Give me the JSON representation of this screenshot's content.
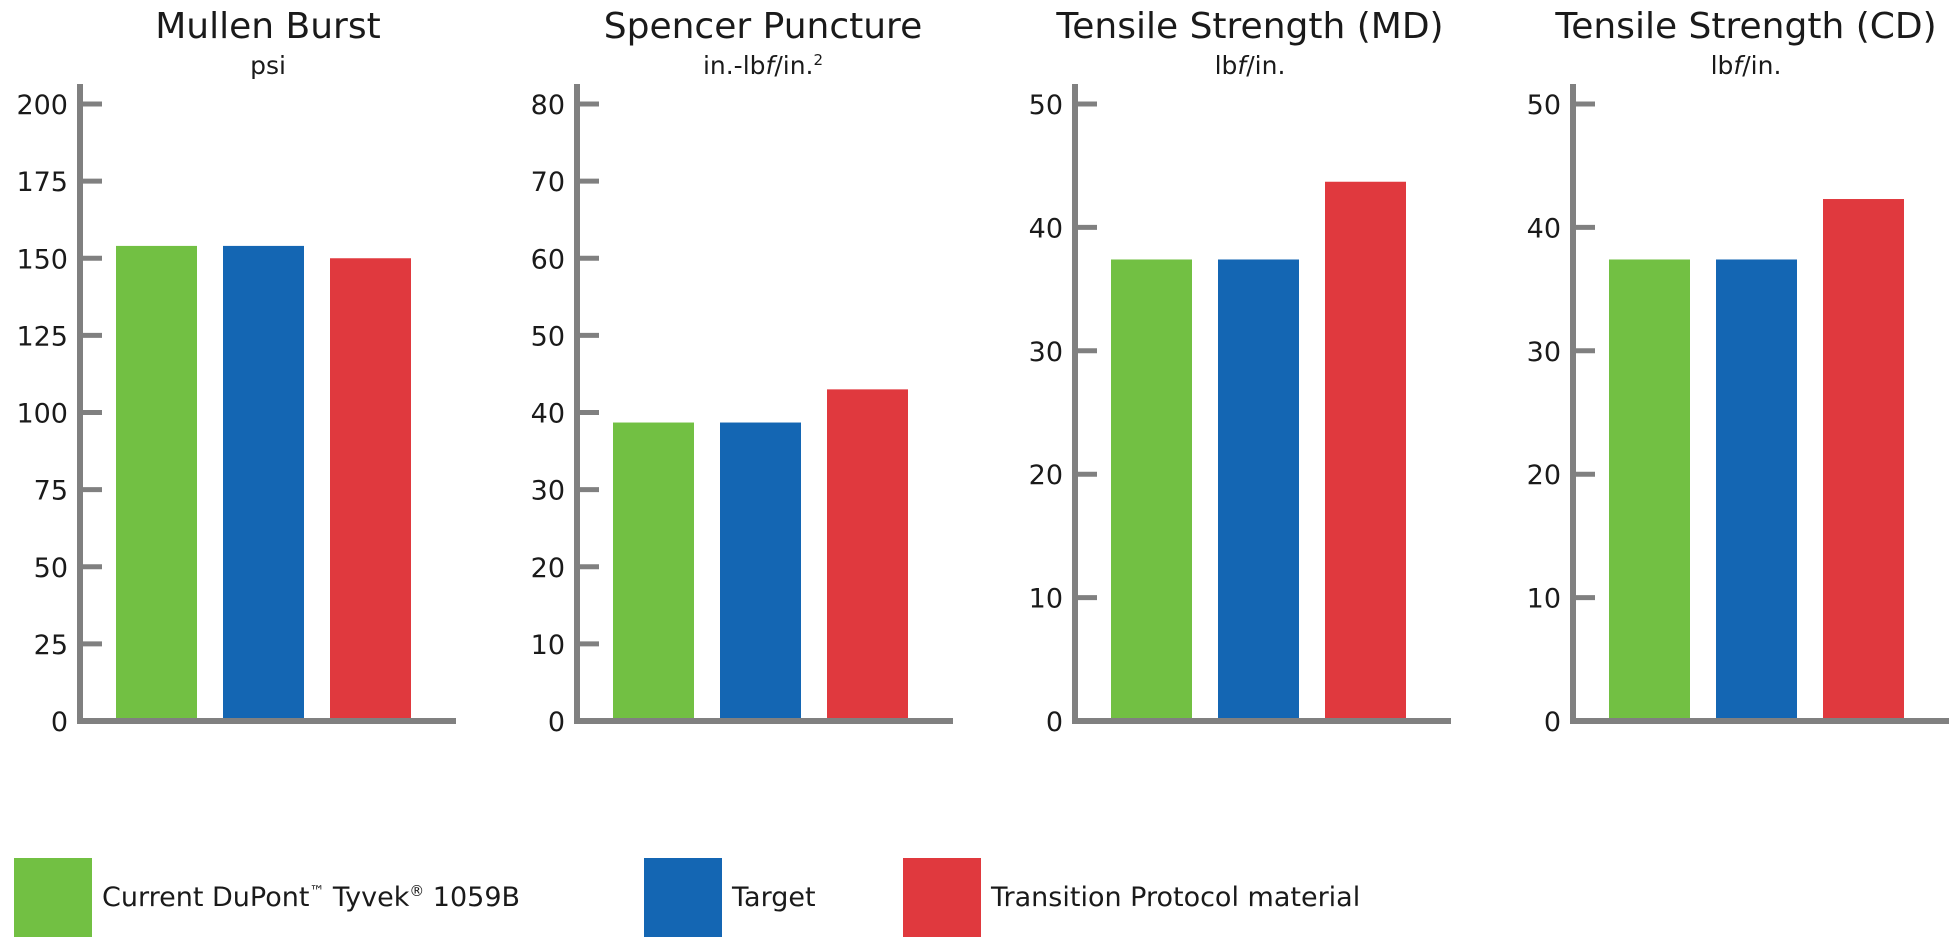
{
  "colors": {
    "axis": "#808080",
    "series": [
      "#72c043",
      "#1466b3",
      "#e0393e"
    ]
  },
  "legend": [
    {
      "name_main": "Current DuPont",
      "tm": "™",
      "name_mid": " Tyvek",
      "reg": "®",
      "name_end": " 1059B"
    },
    {
      "name": "Target"
    },
    {
      "name": "Transition Protocol material"
    }
  ],
  "chart_data": [
    {
      "type": "bar",
      "title": "Mullen Burst",
      "unit": {
        "pre": "psi",
        "italic": "",
        "post": "",
        "sup": ""
      },
      "series": [
        {
          "name": "Current DuPont™ Tyvek® 1059B",
          "values": [
            154
          ]
        },
        {
          "name": "Target",
          "values": [
            154
          ]
        },
        {
          "name": "Transition Protocol material",
          "values": [
            150
          ]
        }
      ],
      "ylim": [
        0,
        200
      ],
      "yticks": [
        0,
        25,
        50,
        75,
        100,
        125,
        150,
        175,
        200
      ],
      "grid": false
    },
    {
      "type": "bar",
      "title": "Spencer Puncture",
      "unit": {
        "pre": "in.-lb",
        "italic": "f",
        "post": "/in.",
        "sup": "2"
      },
      "series": [
        {
          "name": "Current DuPont™ Tyvek® 1059B",
          "values": [
            38.7
          ]
        },
        {
          "name": "Target",
          "values": [
            38.7
          ]
        },
        {
          "name": "Transition Protocol material",
          "values": [
            43
          ]
        }
      ],
      "ylim": [
        0,
        80
      ],
      "yticks": [
        0,
        10,
        20,
        30,
        40,
        50,
        60,
        70,
        80
      ],
      "grid": false
    },
    {
      "type": "bar",
      "title": "Tensile Strength (MD)",
      "unit": {
        "pre": "lb",
        "italic": "f",
        "post": "/in.",
        "sup": ""
      },
      "series": [
        {
          "name": "Current DuPont™ Tyvek® 1059B",
          "values": [
            37.4
          ]
        },
        {
          "name": "Target",
          "values": [
            37.4
          ]
        },
        {
          "name": "Transition Protocol material",
          "values": [
            43.7
          ]
        }
      ],
      "ylim": [
        0,
        50
      ],
      "yticks": [
        0,
        10,
        20,
        30,
        40,
        50
      ],
      "grid": false
    },
    {
      "type": "bar",
      "title": "Tensile Strength (CD)",
      "unit": {
        "pre": "lb",
        "italic": "f",
        "post": "/in.",
        "sup": ""
      },
      "series": [
        {
          "name": "Current DuPont™ Tyvek® 1059B",
          "values": [
            37.4
          ]
        },
        {
          "name": "Target",
          "values": [
            37.4
          ]
        },
        {
          "name": "Transition Protocol material",
          "values": [
            42.3
          ]
        }
      ],
      "ylim": [
        0,
        50
      ],
      "yticks": [
        0,
        10,
        20,
        30,
        40,
        50
      ],
      "grid": false
    }
  ]
}
